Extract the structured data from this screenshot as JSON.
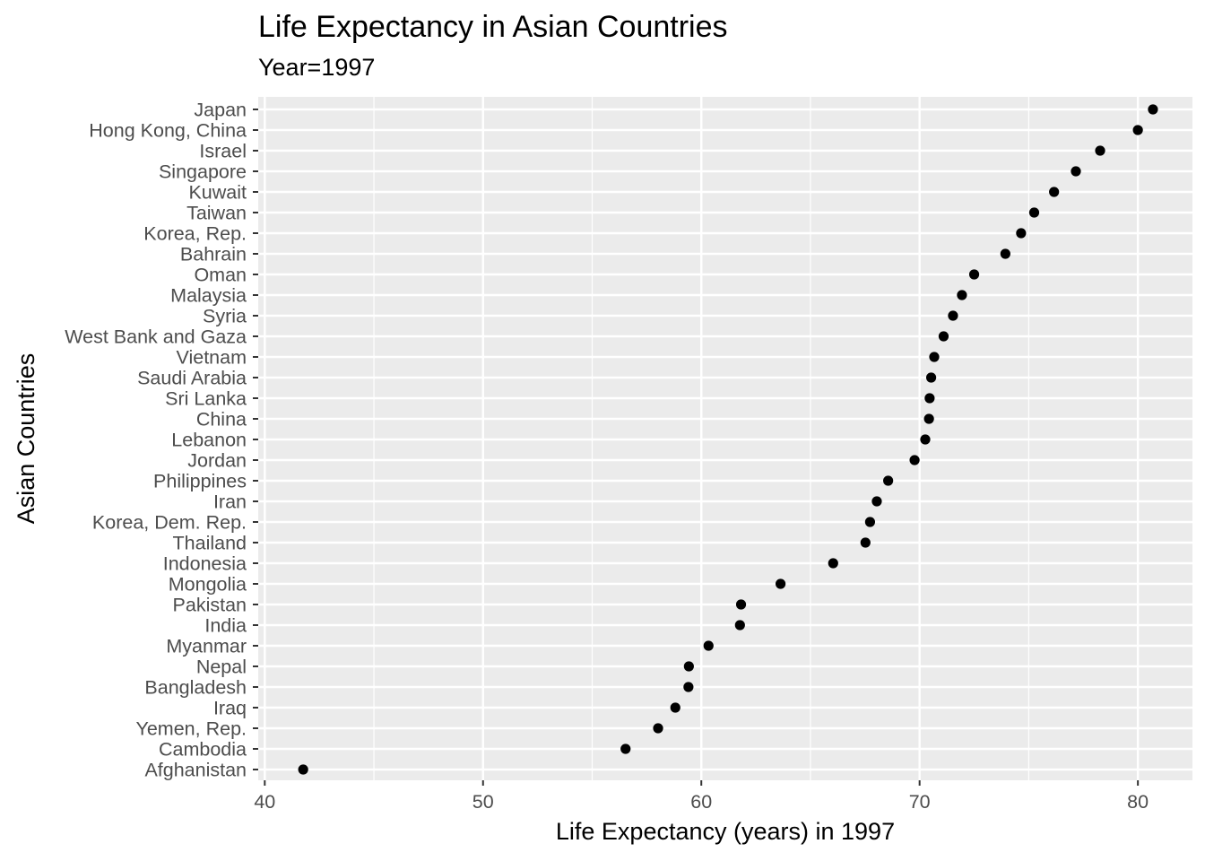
{
  "chart_data": {
    "type": "scatter",
    "title": "Life Expectancy in Asian Countries",
    "subtitle": "Year=1997",
    "xlabel": "Life Expectancy (years) in 1997",
    "ylabel": "Asian Countries",
    "xlim": [
      39.7,
      82.5
    ],
    "xticks": [
      40,
      50,
      60,
      70,
      80
    ],
    "grid": true,
    "background": "#ebebeb",
    "point_color": "#000000",
    "categories": [
      "Japan",
      "Hong Kong, China",
      "Israel",
      "Singapore",
      "Kuwait",
      "Taiwan",
      "Korea, Rep.",
      "Bahrain",
      "Oman",
      "Malaysia",
      "Syria",
      "West Bank and Gaza",
      "Vietnam",
      "Saudi Arabia",
      "Sri Lanka",
      "China",
      "Lebanon",
      "Jordan",
      "Philippines",
      "Iran",
      "Korea, Dem. Rep.",
      "Thailand",
      "Indonesia",
      "Mongolia",
      "Pakistan",
      "India",
      "Myanmar",
      "Nepal",
      "Bangladesh",
      "Iraq",
      "Yemen, Rep.",
      "Cambodia",
      "Afghanistan"
    ],
    "values": [
      80.69,
      80.0,
      78.27,
      77.16,
      76.16,
      75.25,
      74.65,
      73.93,
      72.5,
      71.94,
      71.53,
      71.1,
      70.67,
      70.53,
      70.46,
      70.43,
      70.26,
      69.77,
      68.56,
      68.04,
      67.73,
      67.52,
      66.04,
      63.63,
      61.82,
      61.77,
      60.33,
      59.43,
      59.41,
      58.81,
      58.02,
      56.53,
      41.76
    ]
  }
}
